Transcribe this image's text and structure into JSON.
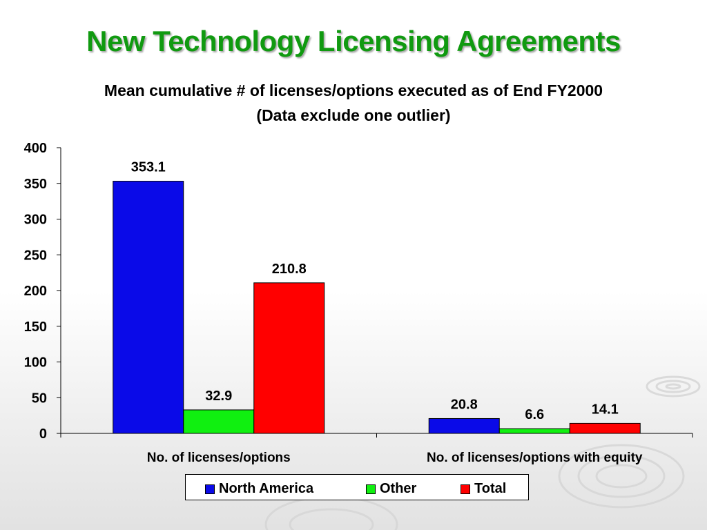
{
  "title": "New Technology Licensing Agreements",
  "subtitle_line1": "Mean cumulative # of licenses/options executed as of End FY2000",
  "subtitle_line2": "(Data exclude one outlier)",
  "colors": {
    "title": "#109a10",
    "north_america": "#0a0ae8",
    "other": "#10f010",
    "total": "#ff0000"
  },
  "chart_data": {
    "type": "bar",
    "categories": [
      "No. of licenses/options",
      "No. of licenses/options with equity"
    ],
    "series": [
      {
        "name": "North America",
        "values": [
          353.1,
          20.8
        ],
        "labels": [
          "353.1",
          "20.8"
        ]
      },
      {
        "name": "Other",
        "values": [
          32.9,
          6.6
        ],
        "labels": [
          "32.9",
          "6.6"
        ]
      },
      {
        "name": "Total",
        "values": [
          210.8,
          14.1
        ],
        "labels": [
          "210.8",
          "14.1"
        ]
      }
    ],
    "ylim": [
      0,
      400
    ],
    "yticks": [
      0,
      50,
      100,
      150,
      200,
      250,
      300,
      350,
      400
    ],
    "ytick_labels": [
      "0",
      "50",
      "100",
      "150",
      "200",
      "250",
      "300",
      "350",
      "400"
    ],
    "grid": false,
    "legend_position": "bottom"
  }
}
